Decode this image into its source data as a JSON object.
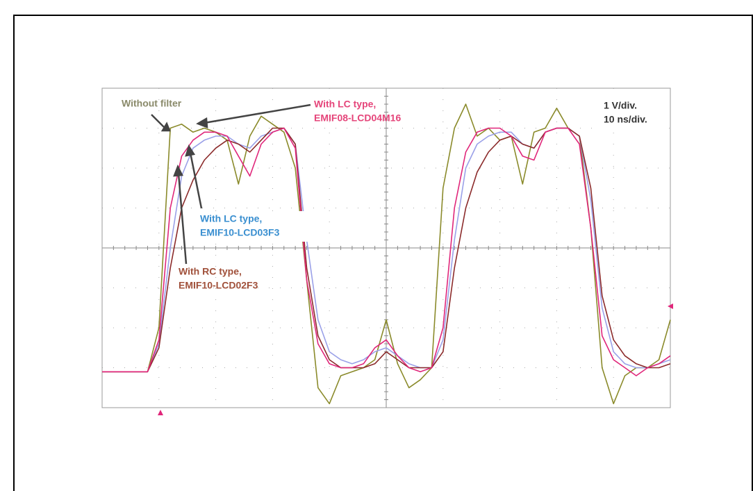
{
  "chart_data": {
    "type": "line",
    "xlim": [
      0,
      100
    ],
    "ylim": [
      -4,
      4
    ],
    "grid": true,
    "x": [
      0,
      2,
      4,
      6,
      8,
      10,
      12,
      14,
      16,
      18,
      20,
      22,
      24,
      26,
      28,
      30,
      32,
      34,
      36,
      38,
      40,
      42,
      44,
      46,
      48,
      50,
      52,
      54,
      56,
      58,
      60,
      62,
      64,
      66,
      68,
      70,
      72,
      74,
      76,
      78,
      80,
      82,
      84,
      86,
      88,
      90,
      92,
      94,
      96,
      98,
      100
    ],
    "series": [
      {
        "color": "#8a8a2a",
        "values": [
          -3.1,
          -3.1,
          -3.1,
          -3.1,
          -3.1,
          -2.0,
          3.0,
          3.1,
          2.9,
          3.0,
          2.9,
          2.7,
          1.6,
          2.8,
          3.3,
          3.1,
          2.9,
          2.0,
          -0.8,
          -3.5,
          -3.9,
          -3.2,
          -3.1,
          -3.0,
          -2.8,
          -1.8,
          -2.9,
          -3.5,
          -3.3,
          -3.0,
          1.5,
          3.0,
          3.6,
          2.8,
          3.0,
          2.7,
          2.8,
          1.6,
          2.9,
          3.0,
          3.5,
          3.0,
          2.8,
          0.5,
          -3.0,
          -3.9,
          -3.2,
          -3.0,
          -3.0,
          -2.8,
          -1.8
        ]
      },
      {
        "color": "#9aa0e8",
        "values": [
          -3.1,
          -3.1,
          -3.1,
          -3.1,
          -3.1,
          -2.4,
          0.0,
          1.8,
          2.5,
          2.7,
          2.8,
          2.8,
          2.6,
          2.5,
          2.8,
          2.9,
          3.0,
          2.6,
          0.2,
          -1.8,
          -2.6,
          -2.8,
          -2.9,
          -2.8,
          -2.6,
          -2.5,
          -2.7,
          -2.9,
          -3.0,
          -3.0,
          -2.3,
          0.2,
          2.0,
          2.6,
          2.8,
          2.9,
          2.9,
          2.6,
          2.5,
          2.9,
          3.0,
          3.0,
          2.8,
          1.2,
          -1.5,
          -2.6,
          -2.9,
          -3.0,
          -3.0,
          -2.9,
          -2.8
        ]
      },
      {
        "color": "#8b2a2a",
        "values": [
          -3.1,
          -3.1,
          -3.1,
          -3.1,
          -3.1,
          -2.5,
          -0.5,
          1.0,
          1.7,
          2.2,
          2.5,
          2.7,
          2.6,
          2.4,
          2.7,
          3.0,
          3.0,
          2.6,
          -0.5,
          -2.2,
          -2.8,
          -3.0,
          -3.0,
          -3.0,
          -2.9,
          -2.6,
          -2.8,
          -3.0,
          -3.0,
          -3.0,
          -2.6,
          -0.5,
          1.0,
          1.9,
          2.4,
          2.7,
          2.8,
          2.6,
          2.5,
          2.9,
          3.0,
          3.0,
          2.8,
          1.5,
          -1.2,
          -2.3,
          -2.7,
          -2.9,
          -3.0,
          -3.0,
          -2.9
        ]
      },
      {
        "color": "#e0267a",
        "values": [
          -3.1,
          -3.1,
          -3.1,
          -3.1,
          -3.1,
          -2.3,
          1.0,
          2.3,
          2.7,
          2.9,
          2.9,
          2.8,
          2.3,
          1.8,
          2.6,
          2.9,
          3.0,
          2.5,
          -0.8,
          -2.4,
          -2.9,
          -3.0,
          -3.0,
          -2.9,
          -2.5,
          -2.3,
          -2.7,
          -3.0,
          -3.1,
          -3.0,
          -2.0,
          1.0,
          2.4,
          2.9,
          3.0,
          3.0,
          2.8,
          2.3,
          2.2,
          2.9,
          3.0,
          3.0,
          2.6,
          0.5,
          -2.2,
          -2.8,
          -3.0,
          -3.2,
          -3.0,
          -2.9,
          -2.7
        ]
      }
    ],
    "annotations": [
      {
        "lines": [
          "Without filter"
        ],
        "color": "#8a8a6a"
      },
      {
        "lines": [
          "With LC type,",
          "EMIF08-LCD04M16"
        ],
        "color": "#e5457a"
      },
      {
        "lines": [
          "With LC type,",
          "EMIF10-LCD03F3"
        ],
        "color": "#3a8fd0"
      },
      {
        "lines": [
          "With RC type,",
          "EMIF10-LCD02F3"
        ],
        "color": "#a0503a"
      },
      {
        "lines": [
          "1 V/div.",
          "10 ns/div."
        ],
        "color": "#333333"
      }
    ]
  }
}
